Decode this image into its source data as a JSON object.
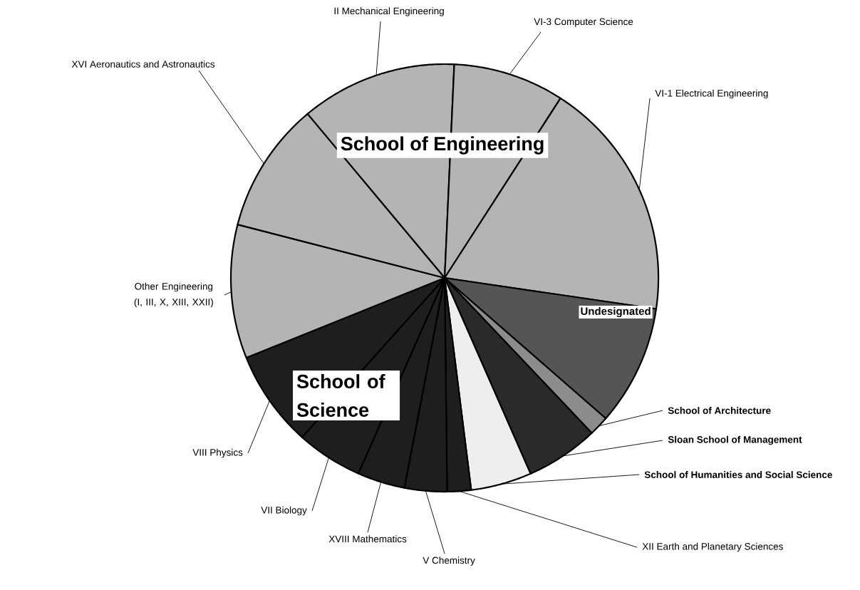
{
  "chart_data": {
    "type": "pie",
    "categories": [
      "II Mechanical Engineering",
      "VI-3 Computer Science",
      "VI-1 Electrical Engineering",
      "Undesignated",
      "School of Architecture",
      "Sloan School of Management",
      "School of Humanities and Social Science",
      "XII Earth and Planetary Sciences",
      "V Chemistry",
      "XVIII Mathematics",
      "VII Biology",
      "VIII Physics",
      "Other Engineering (I, III, X, XIII, XXII)",
      "XVI Aeronautics and Astronautics"
    ],
    "values": [
      11.8,
      8.4,
      18.2,
      9.1,
      1.5,
      5.5,
      4.6,
      1.8,
      3.2,
      3.6,
      5.0,
      7.3,
      10.1,
      9.9
    ],
    "colors": [
      "#b4b4b4",
      "#b4b4b4",
      "#b4b4b4",
      "#555555",
      "#8c8c8c",
      "#2a2a2a",
      "#eeeeee",
      "#1e1e1e",
      "#1e1e1e",
      "#1e1e1e",
      "#1e1e1e",
      "#1e1e1e",
      "#b4b4b4",
      "#b4b4b4"
    ],
    "annotations": [
      "School of Engineering",
      "School of Science"
    ]
  }
}
